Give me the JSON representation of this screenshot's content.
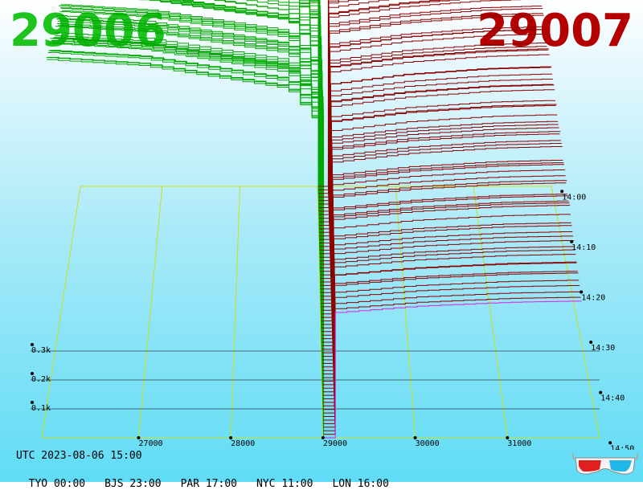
{
  "header": {
    "bid_label": "29006",
    "ask_label": "29007",
    "bid_color": "#1ec31e",
    "ask_color": "#b40000"
  },
  "chart_data": {
    "type": "area",
    "x_ticks": [
      {
        "value": 27000,
        "label": "27000"
      },
      {
        "value": 28000,
        "label": "28000"
      },
      {
        "value": 29000,
        "label": "29000"
      },
      {
        "value": 30000,
        "label": "30000"
      },
      {
        "value": 31000,
        "label": "31000"
      }
    ],
    "xlim": [
      25950,
      32000
    ],
    "depth_ticks": [
      {
        "value": 100,
        "label": "0.1k"
      },
      {
        "value": 200,
        "label": "0.2k"
      },
      {
        "value": 300,
        "label": "0.3k"
      }
    ],
    "zlim": [
      0,
      1300
    ],
    "time_ticks": [
      "14:00",
      "14:10",
      "14:20",
      "14:30",
      "14:40",
      "14:50"
    ],
    "snapshots": 72,
    "series": [
      {
        "side": "bid",
        "color": "#00a800",
        "depth_profile": [
          [
            26000,
            1300
          ],
          [
            27000,
            1280
          ],
          [
            28000,
            1230
          ],
          [
            28600,
            1200
          ],
          [
            28930,
            1080
          ],
          [
            29006,
            0
          ]
        ]
      },
      {
        "side": "ask",
        "color": "#8c0000",
        "depth_profile": [
          [
            29007,
            0
          ],
          [
            29100,
            950
          ],
          [
            30000,
            1000
          ],
          [
            31000,
            1030
          ],
          [
            31800,
            1040
          ]
        ]
      }
    ],
    "colors": {
      "grid_plane": "#c8e020",
      "ask_latest": "#e020e0",
      "depth_gridline": "#000000"
    }
  },
  "footer": {
    "utc": "UTC 2023-08-06 15:00",
    "zones": [
      "TYO 00:00",
      "BJS 23:00",
      "PAR 17:00",
      "NYC 11:00",
      "LON 16:00"
    ]
  },
  "icons": {
    "glasses": "3d-glasses-icon"
  }
}
